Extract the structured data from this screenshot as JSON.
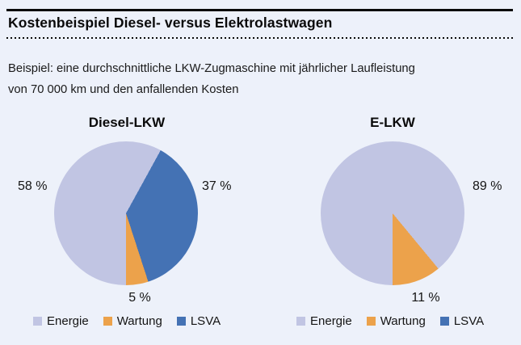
{
  "header": {
    "title": "Kostenbeispiel Diesel- versus Elektrolastwagen",
    "subtitle_line1": "Beispiel: eine durchschnittliche LKW-Zugmaschine mit jährlicher Laufleistung",
    "subtitle_line2": "von 70 000 km und den anfallenden Kosten"
  },
  "colors": {
    "background": "#edf1fa",
    "energie": "#c1c5e3",
    "wartung": "#eca24b",
    "lsva": "#4472b4",
    "text": "#0a0a0a"
  },
  "legend": {
    "items": [
      {
        "label": "Energie",
        "color": "#c1c5e3"
      },
      {
        "label": "Wartung",
        "color": "#eca24b"
      },
      {
        "label": "LSVA",
        "color": "#4472b4"
      }
    ]
  },
  "chart_data": [
    {
      "type": "pie",
      "title": "Diesel-LKW",
      "categories": [
        "Energie",
        "Wartung",
        "LSVA"
      ],
      "values": [
        58,
        5,
        37
      ],
      "unit": "%",
      "labels": [
        "58 %",
        "5 %",
        "37 %"
      ],
      "colors": [
        "#c1c5e3",
        "#eca24b",
        "#4472b4"
      ],
      "legend_position": "bottom",
      "start_angle_deg_clockwise_from_north": 180,
      "draw_order": [
        "Energie",
        "LSVA",
        "Wartung"
      ]
    },
    {
      "type": "pie",
      "title": "E-LKW",
      "categories": [
        "Energie",
        "Wartung",
        "LSVA"
      ],
      "values": [
        89,
        11,
        0
      ],
      "unit": "%",
      "labels": [
        "89 %",
        "11 %",
        ""
      ],
      "colors": [
        "#c1c5e3",
        "#eca24b",
        "#4472b4"
      ],
      "legend_position": "bottom",
      "start_angle_deg_clockwise_from_north": 180,
      "draw_order": [
        "Energie",
        "LSVA",
        "Wartung"
      ]
    }
  ]
}
